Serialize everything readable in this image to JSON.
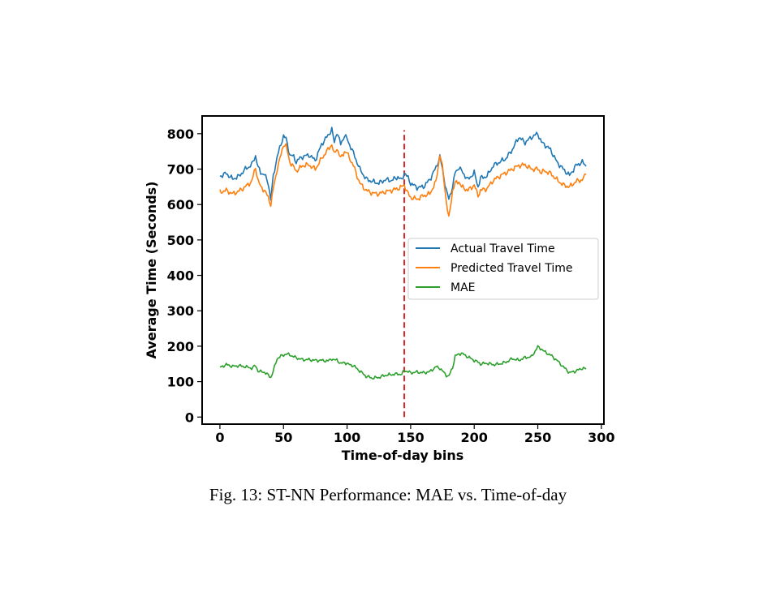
{
  "chart_data": {
    "type": "line",
    "xlabel": "Time-of-day bins",
    "ylabel": "Average Time (Seconds)",
    "xlim": [
      -14,
      302
    ],
    "ylim": [
      -20,
      850
    ],
    "xticks": [
      0,
      50,
      100,
      150,
      200,
      250,
      300
    ],
    "yticks": [
      0,
      100,
      200,
      300,
      400,
      500,
      600,
      700,
      800
    ],
    "legend_position": "center-right",
    "vline": {
      "x": 145,
      "ymin": 0,
      "ymax": 810,
      "color": "#d62728",
      "style": "dashed"
    },
    "series": [
      {
        "name": "Actual Travel Time",
        "color": "#1f77b4",
        "x": [
          0,
          5,
          10,
          15,
          20,
          25,
          28,
          30,
          32,
          35,
          38,
          40,
          42,
          45,
          48,
          50,
          52,
          55,
          58,
          60,
          62,
          65,
          70,
          75,
          80,
          85,
          88,
          90,
          92,
          95,
          98,
          100,
          105,
          110,
          115,
          120,
          125,
          130,
          135,
          140,
          143,
          145,
          148,
          150,
          155,
          160,
          165,
          170,
          173,
          175,
          178,
          180,
          183,
          185,
          188,
          190,
          195,
          200,
          203,
          205,
          210,
          215,
          220,
          225,
          230,
          235,
          240,
          245,
          250,
          253,
          255,
          260,
          265,
          270,
          275,
          280,
          285,
          288
        ],
        "values": [
          680,
          688,
          672,
          680,
          700,
          712,
          738,
          705,
          690,
          685,
          660,
          615,
          680,
          735,
          770,
          795,
          785,
          740,
          735,
          720,
          728,
          735,
          740,
          725,
          770,
          795,
          812,
          775,
          805,
          770,
          795,
          785,
          745,
          700,
          672,
          665,
          660,
          670,
          668,
          678,
          668,
          690,
          675,
          660,
          648,
          650,
          670,
          705,
          735,
          700,
          640,
          615,
          650,
          690,
          705,
          695,
          670,
          690,
          650,
          675,
          680,
          710,
          720,
          730,
          755,
          790,
          775,
          790,
          800,
          775,
          770,
          755,
          720,
          700,
          682,
          710,
          720,
          708
        ]
      },
      {
        "name": "Predicted Travel Time",
        "color": "#ff7f0e",
        "x": [
          0,
          5,
          10,
          15,
          20,
          25,
          28,
          30,
          32,
          35,
          38,
          40,
          42,
          45,
          48,
          50,
          52,
          55,
          58,
          60,
          62,
          65,
          70,
          75,
          80,
          85,
          88,
          90,
          92,
          95,
          98,
          100,
          105,
          110,
          115,
          120,
          125,
          130,
          135,
          140,
          143,
          145,
          148,
          150,
          155,
          160,
          165,
          170,
          173,
          175,
          178,
          180,
          183,
          185,
          188,
          190,
          195,
          200,
          203,
          205,
          210,
          215,
          220,
          225,
          230,
          235,
          240,
          245,
          250,
          253,
          255,
          260,
          265,
          270,
          275,
          280,
          285,
          288
        ],
        "values": [
          635,
          640,
          630,
          638,
          650,
          665,
          705,
          668,
          650,
          640,
          620,
          600,
          645,
          700,
          740,
          770,
          765,
          720,
          705,
          695,
          700,
          710,
          712,
          700,
          730,
          755,
          770,
          740,
          760,
          730,
          750,
          745,
          710,
          660,
          640,
          632,
          630,
          636,
          640,
          645,
          650,
          655,
          630,
          620,
          615,
          625,
          630,
          665,
          742,
          705,
          610,
          560,
          640,
          660,
          665,
          650,
          640,
          655,
          625,
          640,
          645,
          668,
          680,
          690,
          700,
          710,
          712,
          700,
          700,
          690,
          695,
          688,
          670,
          655,
          650,
          665,
          670,
          685
        ]
      },
      {
        "name": "MAE",
        "color": "#2ca02c",
        "x": [
          0,
          5,
          10,
          15,
          20,
          25,
          28,
          30,
          32,
          35,
          38,
          40,
          42,
          45,
          48,
          50,
          52,
          55,
          58,
          60,
          62,
          65,
          70,
          75,
          80,
          85,
          88,
          90,
          92,
          95,
          98,
          100,
          105,
          110,
          115,
          120,
          125,
          130,
          135,
          140,
          143,
          145,
          148,
          150,
          155,
          160,
          165,
          170,
          173,
          175,
          178,
          180,
          183,
          185,
          188,
          190,
          195,
          200,
          203,
          205,
          210,
          215,
          220,
          225,
          230,
          235,
          240,
          245,
          250,
          253,
          255,
          260,
          265,
          270,
          275,
          280,
          285,
          288
        ],
        "values": [
          140,
          148,
          143,
          145,
          142,
          138,
          145,
          130,
          128,
          127,
          118,
          112,
          130,
          165,
          172,
          175,
          178,
          176,
          170,
          168,
          165,
          162,
          162,
          160,
          160,
          158,
          165,
          160,
          162,
          150,
          155,
          150,
          145,
          130,
          115,
          110,
          112,
          118,
          120,
          122,
          120,
          132,
          128,
          125,
          127,
          125,
          128,
          142,
          138,
          130,
          118,
          115,
          140,
          172,
          178,
          180,
          170,
          160,
          155,
          150,
          152,
          148,
          150,
          155,
          165,
          160,
          168,
          170,
          198,
          192,
          185,
          175,
          160,
          142,
          125,
          130,
          138,
          136
        ]
      }
    ]
  },
  "caption": "Fig. 13: ST-NN Performance: MAE vs. Time-of-day"
}
